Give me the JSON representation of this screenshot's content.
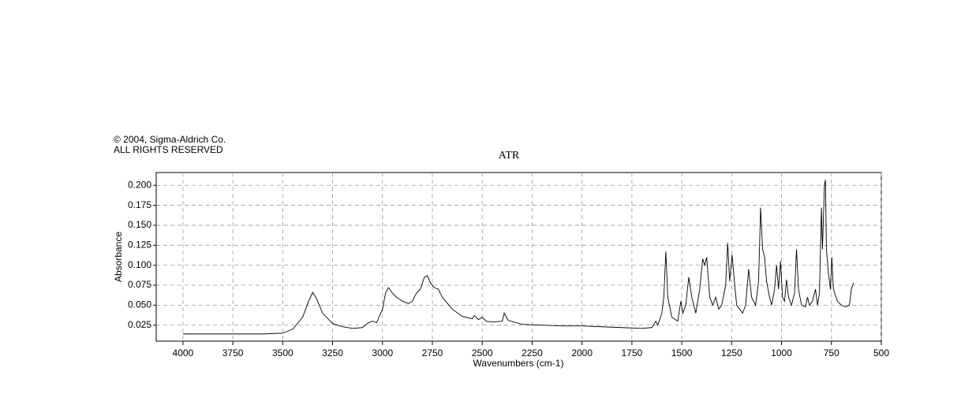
{
  "chart_data": {
    "type": "line",
    "title": "ATR",
    "copyright": [
      "© 2004, Sigma-Aldrich Co.",
      "ALL RIGHTS RESERVED"
    ],
    "x_label": "Wavenumbers (cm-1)",
    "y_label": "Absorbance",
    "color": "#000000",
    "grid": true,
    "xlim": [
      4134,
      500
    ],
    "ylim": [
      0.005,
      0.216
    ],
    "xticks": [
      4000,
      3750,
      3500,
      3250,
      3000,
      2750,
      2500,
      2250,
      2000,
      1750,
      1500,
      1250,
      1000,
      750,
      500
    ],
    "yticks": [
      {
        "value": 0.025,
        "label": "0.025"
      },
      {
        "value": 0.05,
        "label": "0.050"
      },
      {
        "value": 0.075,
        "label": "0.075"
      },
      {
        "value": 0.1,
        "label": "0.100"
      },
      {
        "value": 0.125,
        "label": "0.125"
      },
      {
        "value": 0.15,
        "label": "0.150"
      },
      {
        "value": 0.175,
        "label": "0.175"
      },
      {
        "value": 0.2,
        "label": "0.200"
      }
    ],
    "x": [
      4000,
      3800,
      3600,
      3500,
      3450,
      3400,
      3370,
      3350,
      3330,
      3300,
      3250,
      3200,
      3150,
      3100,
      3070,
      3050,
      3030,
      3000,
      2985,
      2970,
      2950,
      2930,
      2900,
      2870,
      2850,
      2830,
      2810,
      2790,
      2775,
      2760,
      2740,
      2720,
      2700,
      2650,
      2600,
      2550,
      2540,
      2520,
      2500,
      2480,
      2450,
      2400,
      2390,
      2370,
      2300,
      2200,
      2100,
      2000,
      1900,
      1800,
      1700,
      1650,
      1630,
      1620,
      1600,
      1590,
      1580,
      1570,
      1550,
      1520,
      1505,
      1495,
      1480,
      1465,
      1450,
      1430,
      1410,
      1395,
      1385,
      1375,
      1360,
      1345,
      1330,
      1315,
      1300,
      1280,
      1270,
      1260,
      1248,
      1240,
      1225,
      1210,
      1195,
      1180,
      1165,
      1150,
      1130,
      1115,
      1105,
      1095,
      1085,
      1075,
      1060,
      1050,
      1035,
      1025,
      1015,
      1005,
      995,
      985,
      975,
      965,
      950,
      935,
      925,
      915,
      900,
      880,
      870,
      860,
      845,
      830,
      820,
      810,
      800,
      795,
      785,
      780,
      775,
      765,
      755,
      748,
      740,
      720,
      700,
      680,
      660,
      650,
      640
    ],
    "values": [
      0.014,
      0.014,
      0.014,
      0.015,
      0.02,
      0.035,
      0.055,
      0.066,
      0.058,
      0.04,
      0.027,
      0.023,
      0.021,
      0.022,
      0.028,
      0.03,
      0.028,
      0.045,
      0.065,
      0.072,
      0.065,
      0.06,
      0.055,
      0.052,
      0.055,
      0.065,
      0.07,
      0.085,
      0.087,
      0.078,
      0.072,
      0.07,
      0.06,
      0.045,
      0.036,
      0.033,
      0.037,
      0.032,
      0.035,
      0.03,
      0.029,
      0.03,
      0.04,
      0.031,
      0.026,
      0.025,
      0.024,
      0.024,
      0.023,
      0.022,
      0.021,
      0.022,
      0.03,
      0.025,
      0.04,
      0.06,
      0.117,
      0.06,
      0.035,
      0.03,
      0.055,
      0.04,
      0.05,
      0.085,
      0.06,
      0.04,
      0.07,
      0.108,
      0.1,
      0.11,
      0.06,
      0.05,
      0.06,
      0.045,
      0.05,
      0.075,
      0.128,
      0.08,
      0.113,
      0.09,
      0.05,
      0.045,
      0.04,
      0.05,
      0.095,
      0.06,
      0.05,
      0.08,
      0.172,
      0.12,
      0.11,
      0.08,
      0.06,
      0.05,
      0.07,
      0.1,
      0.07,
      0.105,
      0.06,
      0.055,
      0.082,
      0.06,
      0.05,
      0.065,
      0.12,
      0.07,
      0.05,
      0.048,
      0.06,
      0.05,
      0.055,
      0.07,
      0.05,
      0.065,
      0.172,
      0.12,
      0.2,
      0.207,
      0.12,
      0.09,
      0.07,
      0.11,
      0.07,
      0.055,
      0.05,
      0.048,
      0.05,
      0.07,
      0.078
    ]
  }
}
